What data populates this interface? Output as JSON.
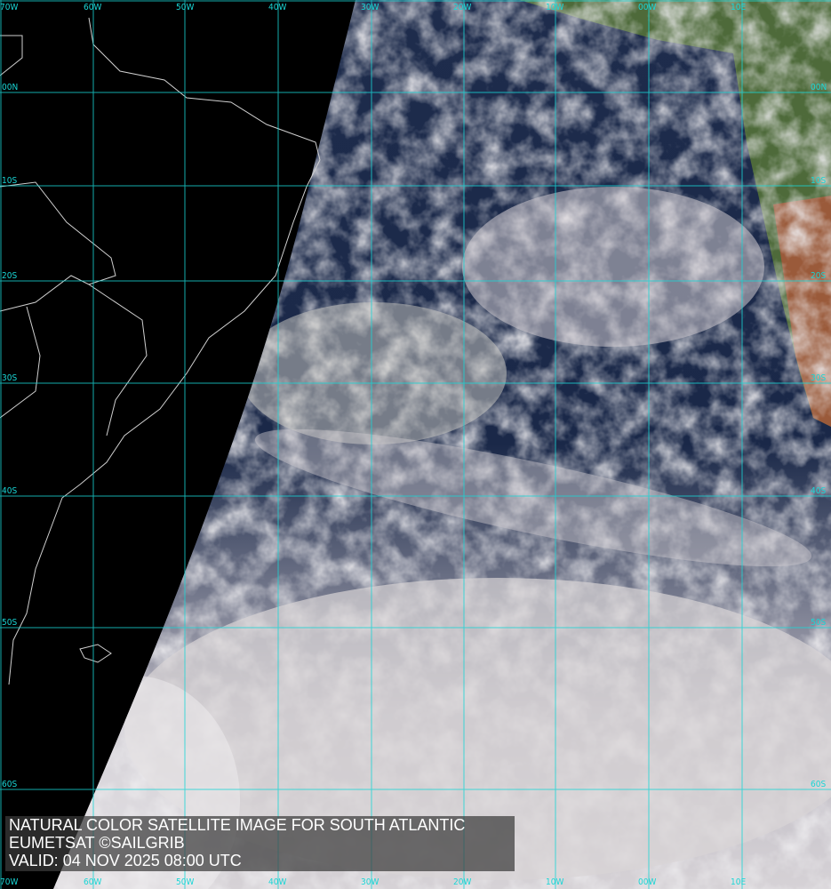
{
  "caption": {
    "title": "NATURAL COLOR SATELLITE IMAGE FOR SOUTH ATLANTIC",
    "credit": "EUMETSAT ©SAILGRIB",
    "valid": "VALID:  04 NOV 2025 08:00 UTC"
  },
  "grid": {
    "color": "#19d6d6",
    "longitudes": [
      "70W",
      "60W",
      "50W",
      "40W",
      "30W",
      "20W",
      "10W",
      "00W",
      "10E"
    ],
    "latitudes": [
      "00N",
      "10S",
      "20S",
      "30S",
      "40S",
      "50S",
      "60S"
    ]
  },
  "colors": {
    "space": "#000000",
    "ocean": "#1c2a4a",
    "cloud": "#d8d4d6",
    "land": "#4a6a38",
    "desert": "#9a5a3a",
    "coastline": "#d0d0d0"
  }
}
